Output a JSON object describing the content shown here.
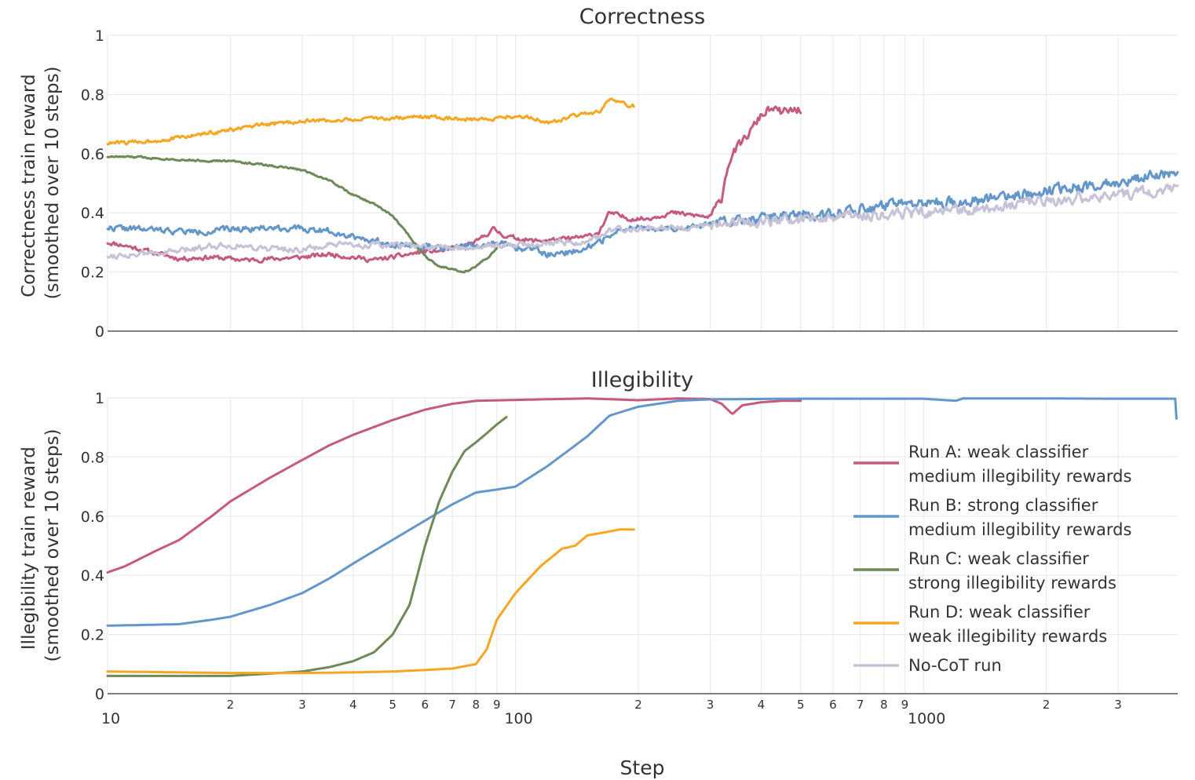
{
  "colors": {
    "run_a": "#c45a80",
    "run_b": "#6497c9",
    "run_c": "#6e8a58",
    "run_d": "#f5a623",
    "no_cot": "#c6c3d8"
  },
  "chart_data": [
    {
      "type": "line",
      "title": "Correctness",
      "ylabel": [
        "Correctness train reward",
        "(smoothed over 10 steps)"
      ],
      "xlabel": "",
      "xscale": "log",
      "xlim": [
        10,
        4200
      ],
      "ylim": [
        0,
        1
      ],
      "yticks": [
        0,
        0.2,
        0.4,
        0.6,
        0.8,
        1
      ],
      "ytick_labels": [
        "0",
        "0.2",
        "0.4",
        "0.6",
        "0.8",
        "1"
      ],
      "series": [
        {
          "name": "Run A: weak classifier medium illegibility rewards",
          "color_key": "run_a",
          "noise": 0.012,
          "seed": 11,
          "points": [
            [
              10,
              0.3
            ],
            [
              11,
              0.29
            ],
            [
              13,
              0.265
            ],
            [
              15,
              0.245
            ],
            [
              18,
              0.25
            ],
            [
              22,
              0.24
            ],
            [
              30,
              0.25
            ],
            [
              35,
              0.26
            ],
            [
              40,
              0.25
            ],
            [
              45,
              0.24
            ],
            [
              50,
              0.25
            ],
            [
              55,
              0.26
            ],
            [
              60,
              0.27
            ],
            [
              65,
              0.27
            ],
            [
              70,
              0.28
            ],
            [
              80,
              0.3
            ],
            [
              88,
              0.345
            ],
            [
              95,
              0.32
            ],
            [
              110,
              0.305
            ],
            [
              130,
              0.31
            ],
            [
              150,
              0.32
            ],
            [
              160,
              0.335
            ],
            [
              170,
              0.4
            ],
            [
              190,
              0.38
            ],
            [
              210,
              0.38
            ],
            [
              240,
              0.4
            ],
            [
              280,
              0.39
            ],
            [
              300,
              0.385
            ],
            [
              320,
              0.45
            ],
            [
              330,
              0.55
            ],
            [
              340,
              0.6
            ],
            [
              370,
              0.66
            ],
            [
              400,
              0.73
            ],
            [
              420,
              0.75
            ],
            [
              450,
              0.74
            ],
            [
              500,
              0.75
            ]
          ]
        },
        {
          "name": "Run B: strong classifier medium illegibility rewards",
          "color_key": "run_b",
          "noise": 0.016,
          "seed": 22,
          "points": [
            [
              10,
              0.35
            ],
            [
              12,
              0.345
            ],
            [
              14,
              0.34
            ],
            [
              17,
              0.335
            ],
            [
              20,
              0.345
            ],
            [
              25,
              0.35
            ],
            [
              30,
              0.345
            ],
            [
              35,
              0.34
            ],
            [
              40,
              0.32
            ],
            [
              50,
              0.295
            ],
            [
              60,
              0.285
            ],
            [
              70,
              0.28
            ],
            [
              80,
              0.29
            ],
            [
              90,
              0.3
            ],
            [
              100,
              0.28
            ],
            [
              110,
              0.28
            ],
            [
              120,
              0.26
            ],
            [
              140,
              0.27
            ],
            [
              160,
              0.3
            ],
            [
              180,
              0.34
            ],
            [
              200,
              0.35
            ],
            [
              220,
              0.34
            ],
            [
              260,
              0.35
            ],
            [
              300,
              0.36
            ],
            [
              350,
              0.38
            ],
            [
              400,
              0.38
            ],
            [
              500,
              0.39
            ],
            [
              600,
              0.4
            ],
            [
              800,
              0.42
            ],
            [
              1000,
              0.43
            ],
            [
              1300,
              0.44
            ],
            [
              1700,
              0.46
            ],
            [
              2200,
              0.48
            ],
            [
              2800,
              0.5
            ],
            [
              3500,
              0.52
            ],
            [
              4200,
              0.54
            ]
          ]
        },
        {
          "name": "Run C: weak classifier strong illegibility rewards",
          "color_key": "run_c",
          "noise": 0.005,
          "seed": 33,
          "points": [
            [
              10,
              0.59
            ],
            [
              12,
              0.588
            ],
            [
              15,
              0.58
            ],
            [
              17,
              0.576
            ],
            [
              20,
              0.575
            ],
            [
              25,
              0.56
            ],
            [
              30,
              0.545
            ],
            [
              35,
              0.51
            ],
            [
              40,
              0.46
            ],
            [
              45,
              0.43
            ],
            [
              50,
              0.39
            ],
            [
              55,
              0.32
            ],
            [
              60,
              0.255
            ],
            [
              65,
              0.22
            ],
            [
              70,
              0.21
            ],
            [
              75,
              0.2
            ],
            [
              80,
              0.22
            ],
            [
              86,
              0.25
            ],
            [
              90,
              0.28
            ]
          ]
        },
        {
          "name": "Run D: weak classifier weak illegibility rewards",
          "color_key": "run_d",
          "noise": 0.01,
          "seed": 44,
          "points": [
            [
              10,
              0.635
            ],
            [
              12,
              0.64
            ],
            [
              14,
              0.648
            ],
            [
              16,
              0.66
            ],
            [
              20,
              0.68
            ],
            [
              25,
              0.7
            ],
            [
              30,
              0.71
            ],
            [
              40,
              0.715
            ],
            [
              50,
              0.72
            ],
            [
              60,
              0.725
            ],
            [
              70,
              0.72
            ],
            [
              80,
              0.715
            ],
            [
              90,
              0.72
            ],
            [
              100,
              0.728
            ],
            [
              110,
              0.72
            ],
            [
              120,
              0.705
            ],
            [
              130,
              0.712
            ],
            [
              140,
              0.73
            ],
            [
              160,
              0.74
            ],
            [
              170,
              0.78
            ],
            [
              180,
              0.77
            ],
            [
              195,
              0.76
            ]
          ]
        },
        {
          "name": "No-CoT run",
          "color_key": "no_cot",
          "noise": 0.016,
          "seed": 55,
          "points": [
            [
              10,
              0.255
            ],
            [
              12,
              0.26
            ],
            [
              15,
              0.27
            ],
            [
              18,
              0.29
            ],
            [
              20,
              0.29
            ],
            [
              25,
              0.28
            ],
            [
              30,
              0.275
            ],
            [
              35,
              0.29
            ],
            [
              40,
              0.29
            ],
            [
              50,
              0.29
            ],
            [
              60,
              0.285
            ],
            [
              70,
              0.28
            ],
            [
              80,
              0.285
            ],
            [
              90,
              0.29
            ],
            [
              100,
              0.29
            ],
            [
              120,
              0.3
            ],
            [
              150,
              0.3
            ],
            [
              170,
              0.34
            ],
            [
              200,
              0.35
            ],
            [
              250,
              0.35
            ],
            [
              300,
              0.36
            ],
            [
              400,
              0.37
            ],
            [
              500,
              0.38
            ],
            [
              700,
              0.39
            ],
            [
              1000,
              0.4
            ],
            [
              1500,
              0.42
            ],
            [
              2000,
              0.44
            ],
            [
              3000,
              0.46
            ],
            [
              4200,
              0.48
            ]
          ]
        }
      ]
    },
    {
      "type": "line",
      "title": "Illegibility",
      "ylabel": [
        "Illegibility train reward",
        "(smoothed over 10 steps)"
      ],
      "xlabel": "Step",
      "xscale": "log",
      "xlim": [
        10,
        4200
      ],
      "ylim": [
        0,
        1
      ],
      "yticks": [
        0,
        0.2,
        0.4,
        0.6,
        0.8,
        1
      ],
      "ytick_labels": [
        "0",
        "0.2",
        "0.4",
        "0.6",
        "0.8",
        "1"
      ],
      "xticks_major": [
        10,
        100,
        1000
      ],
      "xtick_major_labels": [
        "10",
        "100",
        "1000"
      ],
      "xticks_minor": [
        20,
        30,
        40,
        50,
        60,
        70,
        80,
        90,
        200,
        300,
        400,
        500,
        600,
        700,
        800,
        900,
        2000,
        3000
      ],
      "xtick_minor_labels": [
        "2",
        "3",
        "4",
        "5",
        "6",
        "7",
        "8",
        "9",
        "2",
        "3",
        "4",
        "5",
        "6",
        "7",
        "8",
        "9",
        "2",
        "3"
      ],
      "series": [
        {
          "name": "Run A: weak classifier medium illegibility rewards",
          "color_key": "run_a",
          "noise": 0.0,
          "seed": 1,
          "points": [
            [
              10,
              0.41
            ],
            [
              11,
              0.43
            ],
            [
              13,
              0.48
            ],
            [
              15,
              0.52
            ],
            [
              18,
              0.6
            ],
            [
              20,
              0.65
            ],
            [
              25,
              0.73
            ],
            [
              30,
              0.79
            ],
            [
              35,
              0.84
            ],
            [
              40,
              0.875
            ],
            [
              50,
              0.925
            ],
            [
              60,
              0.96
            ],
            [
              70,
              0.98
            ],
            [
              80,
              0.99
            ],
            [
              100,
              0.993
            ],
            [
              150,
              0.998
            ],
            [
              200,
              0.992
            ],
            [
              250,
              0.998
            ],
            [
              300,
              0.996
            ],
            [
              320,
              0.98
            ],
            [
              340,
              0.945
            ],
            [
              360,
              0.975
            ],
            [
              400,
              0.985
            ],
            [
              450,
              0.99
            ],
            [
              500,
              0.99
            ]
          ]
        },
        {
          "name": "Run B: strong classifier medium illegibility rewards",
          "color_key": "run_b",
          "noise": 0.0,
          "seed": 2,
          "points": [
            [
              10,
              0.23
            ],
            [
              12,
              0.232
            ],
            [
              15,
              0.235
            ],
            [
              18,
              0.25
            ],
            [
              20,
              0.26
            ],
            [
              25,
              0.3
            ],
            [
              30,
              0.34
            ],
            [
              35,
              0.39
            ],
            [
              40,
              0.44
            ],
            [
              50,
              0.52
            ],
            [
              60,
              0.585
            ],
            [
              70,
              0.64
            ],
            [
              80,
              0.68
            ],
            [
              90,
              0.69
            ],
            [
              100,
              0.7
            ],
            [
              120,
              0.77
            ],
            [
              150,
              0.87
            ],
            [
              170,
              0.94
            ],
            [
              200,
              0.97
            ],
            [
              250,
              0.99
            ],
            [
              300,
              0.995
            ],
            [
              500,
              0.997
            ],
            [
              1000,
              0.997
            ],
            [
              1200,
              0.99
            ],
            [
              1250,
              0.998
            ],
            [
              2000,
              0.998
            ],
            [
              3000,
              0.997
            ],
            [
              3900,
              0.997
            ],
            [
              4150,
              0.997
            ],
            [
              4170,
              0.93
            ]
          ]
        },
        {
          "name": "Run C: weak classifier strong illegibility rewards",
          "color_key": "run_c",
          "noise": 0.0,
          "seed": 3,
          "points": [
            [
              10,
              0.06
            ],
            [
              15,
              0.06
            ],
            [
              20,
              0.06
            ],
            [
              25,
              0.068
            ],
            [
              30,
              0.075
            ],
            [
              35,
              0.09
            ],
            [
              40,
              0.11
            ],
            [
              45,
              0.14
            ],
            [
              50,
              0.2
            ],
            [
              55,
              0.3
            ],
            [
              60,
              0.5
            ],
            [
              65,
              0.65
            ],
            [
              70,
              0.75
            ],
            [
              75,
              0.82
            ],
            [
              80,
              0.85
            ],
            [
              85,
              0.88
            ],
            [
              90,
              0.91
            ],
            [
              95,
              0.935
            ]
          ]
        },
        {
          "name": "Run D: weak classifier weak illegibility rewards",
          "color_key": "run_d",
          "noise": 0.0,
          "seed": 4,
          "points": [
            [
              10,
              0.075
            ],
            [
              15,
              0.072
            ],
            [
              20,
              0.07
            ],
            [
              30,
              0.07
            ],
            [
              40,
              0.072
            ],
            [
              50,
              0.075
            ],
            [
              60,
              0.08
            ],
            [
              70,
              0.085
            ],
            [
              80,
              0.1
            ],
            [
              85,
              0.15
            ],
            [
              90,
              0.25
            ],
            [
              100,
              0.34
            ],
            [
              115,
              0.43
            ],
            [
              130,
              0.49
            ],
            [
              140,
              0.5
            ],
            [
              150,
              0.535
            ],
            [
              165,
              0.545
            ],
            [
              180,
              0.555
            ],
            [
              195,
              0.555
            ]
          ]
        }
      ]
    }
  ],
  "legend": [
    {
      "color_key": "run_a",
      "line1": "Run A: weak classifier",
      "line2": "medium illegibility rewards"
    },
    {
      "color_key": "run_b",
      "line1": "Run B: strong classifier",
      "line2": "medium illegibility rewards"
    },
    {
      "color_key": "run_c",
      "line1": "Run C: weak classifier",
      "line2": "strong illegibility rewards"
    },
    {
      "color_key": "run_d",
      "line1": "Run D: weak classifier",
      "line2": "weak illegibility rewards"
    },
    {
      "color_key": "no_cot",
      "line1": "No-CoT run",
      "line2": ""
    }
  ]
}
